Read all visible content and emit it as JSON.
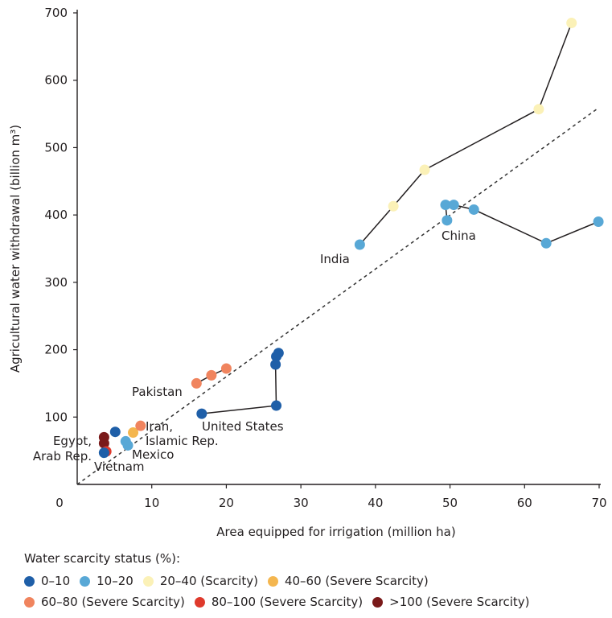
{
  "chart_data": {
    "type": "scatter",
    "title": "",
    "xlabel": "Area equipped for irrigation (million ha)",
    "ylabel": "Agricultural water withdrawal (billion m³)",
    "xlim": [
      0,
      70
    ],
    "ylim": [
      0,
      700
    ],
    "x_ticks": [
      "0",
      "10",
      "20",
      "30",
      "40",
      "50",
      "60",
      "70"
    ],
    "y_ticks": [
      "100",
      "200",
      "300",
      "400",
      "500",
      "600",
      "700"
    ],
    "grid": false,
    "reference_line": "dashed diagonal",
    "legend": {
      "title": "Water scarcity status (%):",
      "placement": "bottom",
      "entries": [
        {
          "key": "s0",
          "label": "0–10",
          "color": "#1f5fa8"
        },
        {
          "key": "s1",
          "label": "10–20",
          "color": "#58a8d6"
        },
        {
          "key": "s2",
          "label": "20–40 (Scarcity)",
          "color": "#fbf1b7"
        },
        {
          "key": "s3",
          "label": "40–60 (Severe Scarcity)",
          "color": "#f4b64f"
        },
        {
          "key": "s4",
          "label": "60–80 (Severe Scarcity)",
          "color": "#f0845e"
        },
        {
          "key": "s5",
          "label": "80–100 (Severe Scarcity)",
          "color": "#df3a2c"
        },
        {
          "key": "s6",
          "label": ">100 (Severe Scarcity)",
          "color": "#7a1a1a"
        }
      ]
    },
    "countries": [
      {
        "name": "India",
        "label_lines": [
          "India"
        ],
        "connected": true,
        "points": [
          [
            37.9,
            356,
            "s1"
          ],
          [
            42.4,
            413,
            "s2"
          ],
          [
            46.6,
            467,
            "s2"
          ],
          [
            61.9,
            557,
            "s2"
          ],
          [
            66.3,
            685,
            "s2"
          ]
        ]
      },
      {
        "name": "China",
        "label_lines": [
          "China"
        ],
        "connected": true,
        "points": [
          [
            49.6,
            392,
            "s1"
          ],
          [
            49.4,
            415,
            "s1"
          ],
          [
            50.5,
            415,
            "s1"
          ],
          [
            53.2,
            408,
            "s1"
          ],
          [
            62.9,
            358,
            "s1"
          ],
          [
            69.9,
            390,
            "s1"
          ]
        ]
      },
      {
        "name": "United States",
        "label_lines": [
          "United States"
        ],
        "connected": true,
        "points": [
          [
            16.7,
            105,
            "s0"
          ],
          [
            26.7,
            117,
            "s0"
          ],
          [
            26.6,
            178,
            "s0"
          ],
          [
            26.7,
            190,
            "s0"
          ],
          [
            27.0,
            195,
            "s0"
          ]
        ]
      },
      {
        "name": "Pakistan",
        "label_lines": [
          "Pakistan"
        ],
        "connected": true,
        "points": [
          [
            16.0,
            150,
            "s4"
          ],
          [
            18.0,
            162,
            "s4"
          ],
          [
            20.0,
            172,
            "s4"
          ]
        ]
      },
      {
        "name": "Iran, Islamic Rep.",
        "label_lines": [
          "Iran,",
          "Islamic Rep."
        ],
        "connected": false,
        "points": [
          [
            7.5,
            77,
            "s3"
          ],
          [
            8.5,
            87,
            "s4"
          ]
        ]
      },
      {
        "name": "Mexico",
        "label_lines": [
          "Mexico"
        ],
        "connected": false,
        "points": [
          [
            6.5,
            64,
            "s1"
          ],
          [
            6.8,
            58,
            "s1"
          ]
        ]
      },
      {
        "name": "Egypt, Arab Rep.",
        "label_lines": [
          "Egypt,",
          "Arab Rep."
        ],
        "connected": false,
        "points": [
          [
            3.6,
            70,
            "s6"
          ],
          [
            3.6,
            61,
            "s6"
          ]
        ]
      },
      {
        "name": "Vietnam",
        "label_lines": [
          "Vietnam"
        ],
        "connected": false,
        "points": [
          [
            5.1,
            78,
            "s0"
          ],
          [
            3.9,
            49,
            "s5"
          ],
          [
            3.6,
            47,
            "s0"
          ]
        ]
      }
    ]
  }
}
